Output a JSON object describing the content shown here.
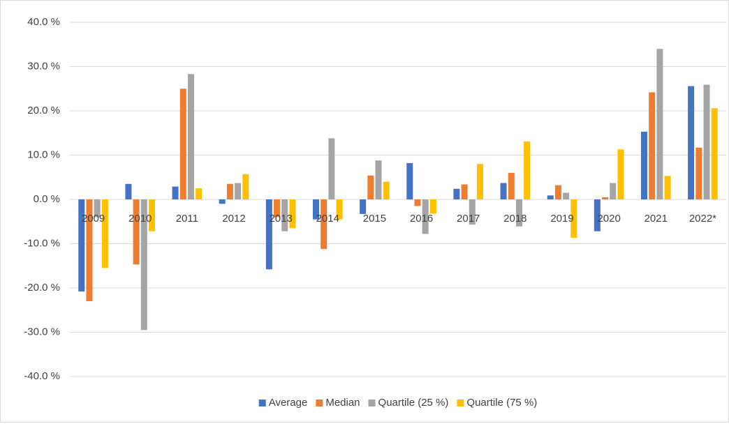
{
  "chart_data": {
    "type": "bar",
    "categories": [
      "2009",
      "2010",
      "2011",
      "2012",
      "2013",
      "2014",
      "2015",
      "2016",
      "2017",
      "2018",
      "2019",
      "2020",
      "2021",
      "2022*"
    ],
    "series": [
      {
        "name": "Average",
        "color": "#4472c4",
        "values": [
          -20.8,
          3.5,
          2.9,
          -1.0,
          -15.8,
          -4.5,
          -3.3,
          8.2,
          2.4,
          3.7,
          0.9,
          -7.2,
          15.3,
          25.6
        ]
      },
      {
        "name": "Median",
        "color": "#ed7d31",
        "values": [
          -23.0,
          -14.7,
          25.0,
          3.5,
          -4.0,
          -11.2,
          5.4,
          -1.5,
          3.4,
          6.0,
          3.2,
          0.5,
          24.2,
          11.7
        ]
      },
      {
        "name": "Quartile (25 %)",
        "color": "#a5a5a5",
        "values": [
          -4.0,
          -29.5,
          28.3,
          3.7,
          -7.2,
          13.8,
          8.8,
          -7.8,
          -5.7,
          -6.1,
          1.5,
          3.7,
          34.0,
          25.9
        ]
      },
      {
        "name": "Quartile (75 %)",
        "color": "#ffc000",
        "values": [
          -15.5,
          -7.2,
          2.5,
          5.7,
          -6.5,
          -4.5,
          4.0,
          -3.2,
          8.0,
          13.1,
          -8.7,
          11.3,
          5.3,
          20.6
        ]
      }
    ],
    "ylim": [
      -40,
      40
    ],
    "yticks": [
      {
        "value": -40,
        "label": "-40.0 %"
      },
      {
        "value": -30,
        "label": "-30.0 %"
      },
      {
        "value": -20,
        "label": "-20.0 %"
      },
      {
        "value": -10,
        "label": "-10.0 %"
      },
      {
        "value": 0,
        "label": "0.0 %"
      },
      {
        "value": 10,
        "label": "10.0 %"
      },
      {
        "value": 20,
        "label": "20.0 %"
      },
      {
        "value": 30,
        "label": "30.0 %"
      },
      {
        "value": 40,
        "label": "40.0 %"
      }
    ],
    "grid": true,
    "legend": "bottom"
  }
}
